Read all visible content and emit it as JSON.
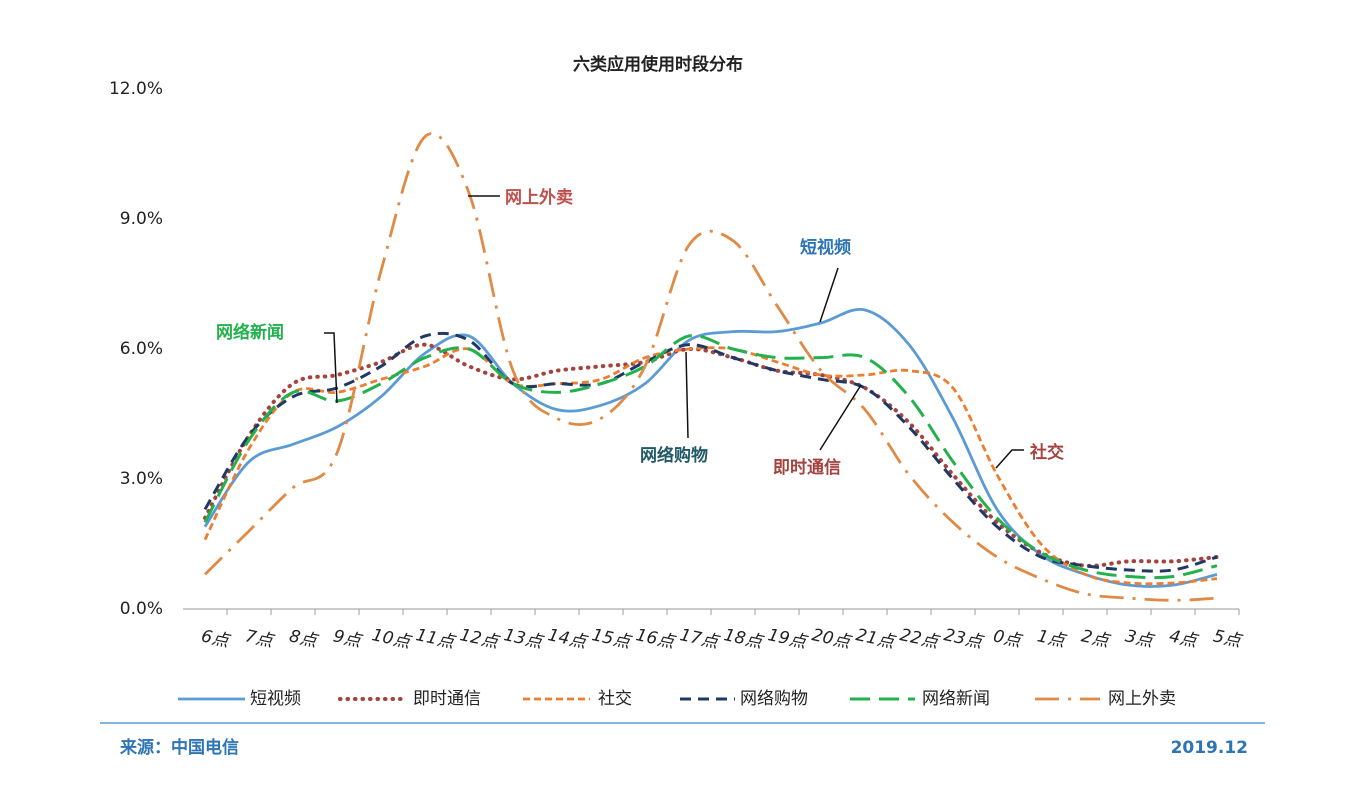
{
  "chart_data": {
    "type": "line",
    "title": "六类应用使用时段分布",
    "categories": [
      "6点",
      "7点",
      "8点",
      "9点",
      "10点",
      "11点",
      "12点",
      "13点",
      "14点",
      "15点",
      "16点",
      "17点",
      "18点",
      "19点",
      "20点",
      "21点",
      "22点",
      "23点",
      "0点",
      "1点",
      "2点",
      "3点",
      "4点",
      "5点"
    ],
    "ylim": [
      0,
      12
    ],
    "yticks": [
      {
        "value": 0,
        "label": "0.0%"
      },
      {
        "value": 3,
        "label": "3.0%"
      },
      {
        "value": 6,
        "label": "6.0%"
      },
      {
        "value": 9,
        "label": "9.0%"
      },
      {
        "value": 12,
        "label": "12.0%"
      }
    ],
    "series": [
      {
        "name": "短视频",
        "color": "#5b9bd5",
        "values": [
          1.9,
          3.4,
          3.8,
          4.2,
          4.9,
          5.9,
          6.3,
          5.2,
          4.6,
          4.7,
          5.2,
          6.2,
          6.4,
          6.4,
          6.6,
          6.9,
          6.1,
          4.4,
          2.3,
          1.25,
          0.8,
          0.55,
          0.55,
          0.8
        ]
      },
      {
        "name": "即时通信",
        "color": "#a5433f",
        "values": [
          2.1,
          4.0,
          5.2,
          5.4,
          5.7,
          6.1,
          5.6,
          5.3,
          5.5,
          5.6,
          5.7,
          6.0,
          5.8,
          5.5,
          5.4,
          5.1,
          4.3,
          3.1,
          2.0,
          1.3,
          1.0,
          1.1,
          1.1,
          1.2
        ]
      },
      {
        "name": "社交",
        "color": "#ed7d31",
        "values": [
          1.6,
          3.7,
          5.0,
          5.0,
          5.3,
          5.6,
          6.0,
          5.2,
          5.2,
          5.3,
          5.8,
          6.0,
          6.0,
          5.7,
          5.4,
          5.4,
          5.5,
          5.1,
          3.1,
          1.5,
          0.8,
          0.6,
          0.6,
          0.7
        ]
      },
      {
        "name": "网络购物",
        "color": "#1f3864",
        "values": [
          2.3,
          4.0,
          4.9,
          5.1,
          5.6,
          6.3,
          6.2,
          5.2,
          5.2,
          5.2,
          5.7,
          6.1,
          5.8,
          5.5,
          5.3,
          5.1,
          4.2,
          3.0,
          1.9,
          1.2,
          1.0,
          0.9,
          0.9,
          1.2
        ]
      },
      {
        "name": "网络新闻",
        "color": "#22b14c",
        "values": [
          2.0,
          3.9,
          5.0,
          4.8,
          5.2,
          5.8,
          6.0,
          5.2,
          5.0,
          5.2,
          5.6,
          6.3,
          6.0,
          5.8,
          5.8,
          5.8,
          4.9,
          3.4,
          2.1,
          1.3,
          0.9,
          0.75,
          0.75,
          1.0
        ]
      },
      {
        "name": "网上外卖",
        "color": "#e08a46",
        "values": [
          0.8,
          1.8,
          2.8,
          3.6,
          7.8,
          10.9,
          9.6,
          5.5,
          4.4,
          4.4,
          5.6,
          8.4,
          8.5,
          7.0,
          5.5,
          4.6,
          3.1,
          2.0,
          1.2,
          0.7,
          0.35,
          0.25,
          0.2,
          0.25
        ]
      }
    ],
    "annotations": [
      {
        "text": "网上外卖",
        "color": "#c0504d"
      },
      {
        "text": "短视频",
        "color": "#2e75b6"
      },
      {
        "text": "网络新闻",
        "color": "#22b14c"
      },
      {
        "text": "网络购物",
        "color": "#215967"
      },
      {
        "text": "即时通信",
        "color": "#a5433f"
      },
      {
        "text": "社交",
        "color": "#a5433f"
      }
    ],
    "source": "来源：中国电信",
    "date": "2019.12"
  }
}
